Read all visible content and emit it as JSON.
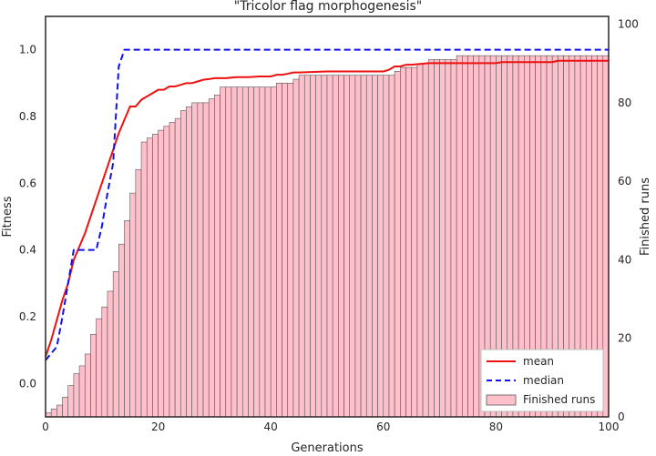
{
  "chart_data": {
    "type": "line",
    "title": "\"Tricolor flag morphogenesis\"",
    "xlabel": "Generations",
    "ylabel": "Fitness",
    "y2label": "Finished runs",
    "xlim": [
      0,
      100
    ],
    "ylim": [
      -0.1,
      1.1
    ],
    "y2lim": [
      0,
      102
    ],
    "xticks": [
      0,
      20,
      40,
      60,
      80,
      100
    ],
    "yticks": [
      0.0,
      0.2,
      0.4,
      0.6,
      0.8,
      1.0
    ],
    "y2ticks": [
      0,
      20,
      40,
      60,
      80,
      100
    ],
    "xtick_labels": [
      "0",
      "20",
      "40",
      "60",
      "80",
      "100"
    ],
    "ytick_labels": [
      "0.0",
      "0.2",
      "0.4",
      "0.6",
      "0.8",
      "1.0"
    ],
    "y2tick_labels": [
      "0",
      "20",
      "40",
      "60",
      "80",
      "100"
    ],
    "grid": false,
    "legend_position": "bottom-right",
    "series": [
      {
        "name": "mean",
        "type": "line",
        "axis": "left",
        "color": "#ee1111",
        "style": "solid",
        "x": [
          0,
          1,
          2,
          3,
          4,
          5,
          6,
          7,
          8,
          9,
          10,
          11,
          12,
          13,
          14,
          15,
          16,
          17,
          18,
          19,
          20,
          21,
          22,
          23,
          24,
          25,
          26,
          27,
          28,
          29,
          30,
          32,
          34,
          36,
          38,
          40,
          41,
          42,
          43,
          44,
          45,
          50,
          55,
          60,
          61,
          62,
          63,
          64,
          65,
          68,
          70,
          75,
          80,
          81,
          85,
          90,
          91,
          95,
          100
        ],
        "y": [
          0.08,
          0.13,
          0.19,
          0.25,
          0.3,
          0.37,
          0.41,
          0.45,
          0.5,
          0.55,
          0.6,
          0.65,
          0.7,
          0.75,
          0.79,
          0.83,
          0.83,
          0.85,
          0.86,
          0.87,
          0.88,
          0.88,
          0.89,
          0.89,
          0.895,
          0.9,
          0.9,
          0.905,
          0.91,
          0.912,
          0.915,
          0.915,
          0.918,
          0.918,
          0.92,
          0.92,
          0.925,
          0.925,
          0.928,
          0.932,
          0.932,
          0.935,
          0.935,
          0.935,
          0.94,
          0.95,
          0.95,
          0.955,
          0.955,
          0.96,
          0.96,
          0.96,
          0.96,
          0.963,
          0.963,
          0.963,
          0.967,
          0.967,
          0.967
        ]
      },
      {
        "name": "median",
        "type": "line",
        "axis": "left",
        "color": "#1111ee",
        "style": "dashed",
        "x": [
          0,
          2,
          3,
          5,
          6,
          7,
          8,
          9,
          10,
          11,
          12,
          13,
          14,
          100
        ],
        "y": [
          0.07,
          0.11,
          0.2,
          0.4,
          0.4,
          0.4,
          0.4,
          0.4,
          0.47,
          0.57,
          0.66,
          0.95,
          1.0,
          1.0
        ]
      },
      {
        "name": "Finished runs",
        "type": "bar",
        "axis": "right",
        "color": "#ffc0cb",
        "edgecolor": "#555555",
        "x": [
          0,
          1,
          2,
          3,
          4,
          5,
          6,
          7,
          8,
          9,
          10,
          11,
          12,
          13,
          14,
          15,
          16,
          17,
          18,
          19,
          20,
          21,
          22,
          23,
          24,
          25,
          26,
          27,
          28,
          29,
          30,
          31,
          32,
          33,
          34,
          35,
          36,
          37,
          38,
          39,
          40,
          41,
          42,
          43,
          44,
          45,
          46,
          47,
          48,
          49,
          50,
          51,
          52,
          53,
          54,
          55,
          56,
          57,
          58,
          59,
          60,
          61,
          62,
          63,
          64,
          65,
          66,
          67,
          68,
          69,
          70,
          71,
          72,
          73,
          74,
          75,
          76,
          77,
          78,
          79,
          80,
          81,
          82,
          83,
          84,
          85,
          86,
          87,
          88,
          89,
          90,
          91,
          92,
          93,
          94,
          95,
          96,
          97,
          98,
          99
        ],
        "values": [
          1,
          2,
          3,
          5,
          8,
          11,
          13,
          16,
          21,
          25,
          28,
          32,
          37,
          44,
          50,
          57,
          63,
          70,
          71,
          72,
          73,
          74,
          75,
          76,
          78,
          79,
          80,
          80,
          80,
          81,
          82,
          84,
          84,
          84,
          84,
          84,
          84,
          84,
          84,
          84,
          84,
          85,
          85,
          85,
          86,
          87,
          87,
          87,
          87,
          87,
          87,
          87,
          87,
          87,
          87,
          87,
          87,
          87,
          87,
          87,
          87,
          87,
          88,
          89,
          89,
          89,
          90,
          90,
          91,
          91,
          91,
          91,
          91,
          92,
          92,
          92,
          92,
          92,
          92,
          92,
          92,
          92,
          92,
          92,
          92,
          92,
          92,
          92,
          92,
          92,
          92,
          92,
          92,
          92,
          92,
          92,
          92,
          92,
          92,
          92
        ]
      }
    ]
  }
}
